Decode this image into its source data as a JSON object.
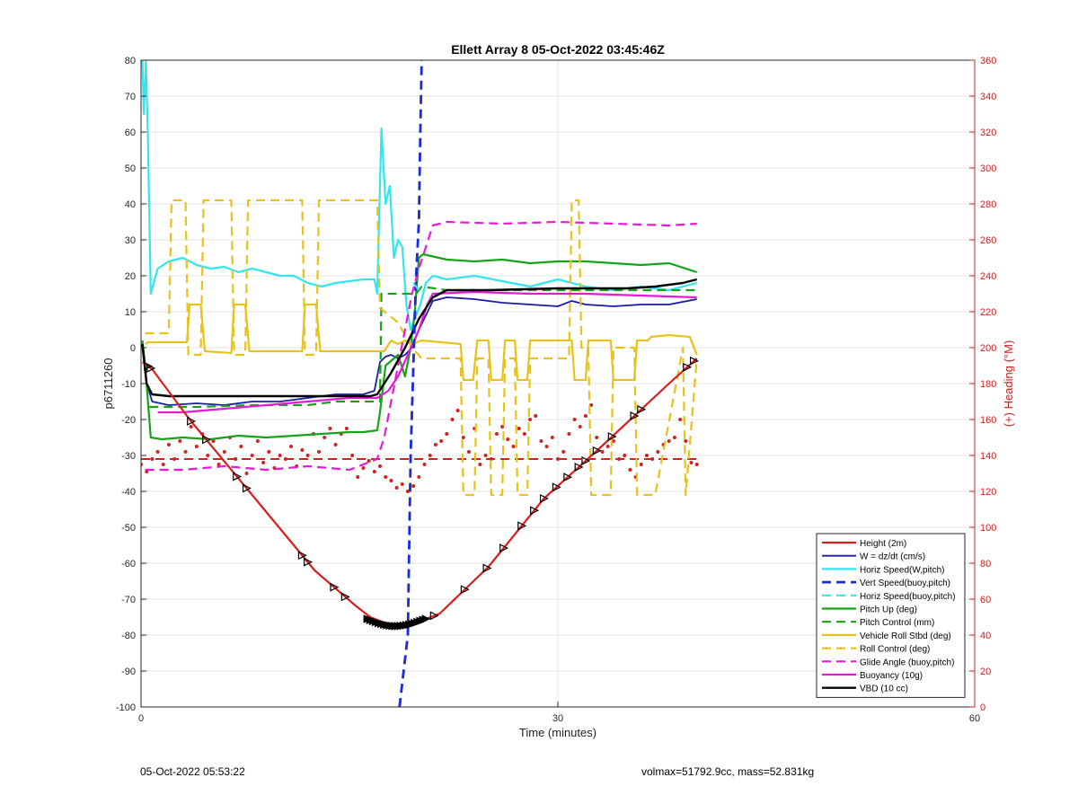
{
  "footer": {
    "left_text": "05-Oct-2022 05:53:22",
    "right_text": "volmax=51792.9cc, mass=52.831kg"
  },
  "chart_data": {
    "type": "line",
    "title": "Ellett Array 8 05-Oct-2022 03:45:46Z",
    "xlabel": "Time (minutes)",
    "ylabel_left": "p6711260",
    "ylabel_right": "(+) Heading (°M)",
    "xlim": [
      0,
      60
    ],
    "ylim_left": [
      -100,
      80
    ],
    "ylim_right": [
      0,
      360
    ],
    "x_ticks": [
      0,
      30,
      60
    ],
    "y_ticks_left": [
      -100,
      -90,
      -80,
      -70,
      -60,
      -50,
      -40,
      -30,
      -20,
      -10,
      0,
      10,
      20,
      30,
      40,
      50,
      60,
      70,
      80
    ],
    "y_ticks_right": [
      0,
      20,
      40,
      60,
      80,
      100,
      120,
      140,
      160,
      180,
      200,
      220,
      240,
      260,
      280,
      300,
      320,
      340,
      360
    ],
    "grid": true,
    "legend_position": "bottom-right",
    "colors": {
      "red": "#d62020",
      "blue": "#1a1aaa",
      "cyan": "#33e6ee",
      "green": "#17a317",
      "yellow": "#e6c21a",
      "magenta": "#e61ad6",
      "black": "#000000",
      "right_axis": "#cc2222"
    },
    "series": [
      {
        "name": "Height (2m)",
        "color": "#d62020",
        "style": "solid",
        "width": 2.2,
        "x": [
          0.1,
          0.8,
          3.5,
          8.0,
          12.5,
          15.5,
          16.5,
          17.5,
          18.5,
          19.5,
          21.5,
          25,
          29,
          33,
          38,
          40
        ],
        "y": [
          -4,
          -6,
          -20,
          -41,
          -62,
          -72,
          -75,
          -76.5,
          -77.3,
          -77,
          -74,
          -61,
          -42,
          -28,
          -10,
          -3
        ],
        "markers_x": [
          0.5,
          0.7,
          3.6,
          4.7,
          6.9,
          7.6,
          11.6,
          12.0,
          13.9,
          14.7,
          21.1,
          23.3,
          24.9,
          26.1,
          27.4,
          28.3,
          29.0,
          29.9,
          30.7,
          31.5,
          32.0,
          32.8,
          33.9,
          35.5,
          36.0,
          39.3,
          39.8
        ]
      },
      {
        "name": "W = dz/dt (cm/s)",
        "color": "#1a1aaa",
        "style": "solid",
        "width": 1.8,
        "x": [
          0.1,
          0.4,
          0.8,
          2,
          4,
          6,
          8,
          10,
          12,
          14,
          16,
          16.8,
          17.2,
          17.6,
          18,
          18.5,
          19,
          19.5,
          20,
          20.5,
          21,
          22,
          24,
          26,
          28,
          30,
          31,
          32,
          34,
          36,
          38,
          40
        ],
        "y": [
          0,
          -10,
          -15,
          -16,
          -15.5,
          -16,
          -15,
          -15,
          -14,
          -13,
          -13,
          -12,
          -4,
          -2.5,
          -2,
          -3,
          -2,
          0,
          5,
          9,
          13,
          14,
          13.5,
          12.5,
          12,
          11.5,
          13,
          12,
          11.5,
          12,
          12,
          13.5
        ]
      },
      {
        "name": "Horiz Speed(W,pitch)",
        "color": "#33e6ee",
        "style": "solid",
        "width": 2.2,
        "x": [
          0.1,
          0.2,
          0.35,
          0.5,
          0.7,
          1.2,
          2,
          3,
          4,
          5,
          6,
          7,
          8,
          9,
          10,
          11,
          12,
          13,
          14,
          15,
          16,
          16.8,
          17,
          17.3,
          17.6,
          17.9,
          18.2,
          18.5,
          18.8,
          19.1,
          19.4,
          19.7,
          20.1,
          20.5,
          21,
          22,
          24,
          26,
          28,
          30,
          32,
          34,
          36,
          38,
          40
        ],
        "y": [
          80,
          65,
          80,
          58,
          15,
          22,
          24,
          25,
          23,
          22,
          22.5,
          21,
          22,
          21,
          20,
          20,
          18,
          17,
          18,
          18.5,
          19,
          19,
          15,
          61,
          40,
          45,
          25,
          30,
          28,
          12,
          5,
          8,
          12,
          18,
          20,
          19,
          20,
          18.5,
          17,
          19,
          17,
          16,
          17,
          16,
          18
        ]
      },
      {
        "name": "Vert Speed(buoy,pitch)",
        "color": "#1a2ad8",
        "style": "dashed",
        "width": 2.8,
        "x": [
          18.6,
          19.2,
          19.3,
          19.4,
          19.8,
          20.0,
          20.1,
          20.2
        ],
        "y": [
          -100,
          -80,
          -55,
          -30,
          20,
          35,
          60,
          80
        ]
      },
      {
        "name": "Horiz Speed(buoy,pitch)",
        "color": "#33e6ee",
        "style": "dashed",
        "width": 2.2,
        "x": [
          19.6,
          20.0
        ],
        "y": [
          18,
          16
        ]
      },
      {
        "name": "Pitch Up (deg)",
        "color": "#17a317",
        "style": "solid",
        "width": 2.2,
        "x": [
          0.1,
          0.3,
          0.7,
          1.5,
          3,
          5,
          7,
          9,
          11,
          13,
          15,
          16,
          17,
          17.2,
          17.6,
          18.5,
          19.0,
          19.4,
          19.7,
          20,
          20.3,
          22,
          24,
          26,
          28,
          30,
          32,
          34,
          36,
          38,
          40
        ],
        "y": [
          2,
          -5,
          -25,
          -25.5,
          -25,
          -25.5,
          -24.5,
          -25,
          -24.5,
          -24,
          -23.5,
          -23.5,
          -23,
          -18,
          -5,
          -2,
          -8,
          0,
          10,
          25,
          26,
          24.5,
          24,
          24.5,
          23.5,
          24,
          24,
          23.5,
          23,
          23.5,
          21
        ]
      },
      {
        "name": "Pitch Control (mm)",
        "color": "#17a317",
        "style": "dashed",
        "width": 2.2,
        "x": [
          0.6,
          1.0,
          4,
          8,
          12,
          14,
          17.2,
          17.3,
          19.8,
          20.2,
          22,
          26,
          30,
          34,
          38,
          40
        ],
        "y": [
          -16.5,
          -16.5,
          -16.5,
          -16,
          -16,
          -15,
          -15,
          15,
          15,
          17,
          16,
          16,
          16,
          16,
          16,
          16
        ]
      },
      {
        "name": "Vehicle Roll Stbd (deg)",
        "color": "#e6c21a",
        "style": "solid",
        "width": 2.2,
        "x": [
          0.3,
          0.5,
          3.3,
          3.5,
          4.3,
          4.6,
          6.5,
          6.7,
          7.5,
          7.8,
          11.6,
          11.8,
          12.6,
          12.9,
          17.5,
          18.0,
          18.5,
          19.0,
          19.5,
          20.2,
          23.0,
          23.2,
          23.9,
          24.2,
          25.0,
          25.2,
          26.0,
          26.2,
          26.9,
          27.1,
          27.8,
          28.0,
          31.0,
          31.2,
          32.0,
          32.2,
          33.8,
          34.0,
          35.5,
          35.7,
          36.5,
          36.7,
          38.0,
          39.5,
          40
        ],
        "y": [
          1,
          1.5,
          1.5,
          12,
          12,
          -1,
          -1.5,
          12,
          12,
          -1,
          -1,
          12,
          12,
          -1,
          -1,
          2,
          1,
          2,
          1,
          2,
          1,
          -9,
          -9,
          2,
          2,
          -9,
          -9,
          2,
          2,
          -9,
          -9,
          2,
          2,
          -9,
          -9,
          2,
          2,
          -9,
          -9,
          2,
          2,
          3,
          3.5,
          3,
          -2
        ]
      },
      {
        "name": "Roll Control (deg)",
        "color": "#e6c21a",
        "style": "dashed",
        "width": 2.2,
        "x": [
          0.3,
          2.0,
          2.2,
          3.2,
          3.4,
          4.3,
          4.5,
          6.5,
          6.7,
          7.5,
          7.7,
          11.6,
          11.8,
          12.6,
          12.8,
          17.0,
          17.2,
          18.5,
          19.5,
          20.2,
          22,
          23.0,
          23.2,
          24.0,
          24.2,
          25.0,
          25.2,
          26.0,
          26.2,
          26.9,
          27.1,
          27.8,
          28.0,
          30.8,
          31.0,
          31.5,
          31.7,
          32.2,
          32.4,
          33.8,
          34.0,
          35.5,
          35.7,
          37.0,
          39.0,
          39.2,
          40
        ],
        "y": [
          4,
          4,
          41,
          41,
          -2,
          -2,
          41,
          41,
          -2,
          -2,
          41,
          41,
          -2,
          -2,
          41,
          41,
          11,
          7,
          0,
          -3,
          -3,
          -3,
          -41,
          -41,
          -3,
          -3,
          -41,
          -41,
          -3,
          -3,
          -41,
          -41,
          -3,
          -3,
          41,
          41,
          0,
          0,
          -41,
          -41,
          0,
          0,
          -41,
          -41,
          0,
          -41,
          -3
        ]
      },
      {
        "name": "Glide Angle (buoy,pitch)",
        "color": "#e61ad6",
        "style": "dashed",
        "width": 2.2,
        "x": [
          0.3,
          3,
          6,
          9,
          12,
          15,
          17.0,
          17.5,
          18,
          18.5,
          19,
          19.5,
          20,
          20.5,
          21,
          22,
          26,
          30,
          34,
          38,
          40
        ],
        "y": [
          -34,
          -34,
          -33,
          -34,
          -33,
          -34,
          -31,
          -25,
          -15,
          -5,
          5,
          15,
          22,
          28,
          34,
          35,
          34.5,
          35,
          34.5,
          34,
          34.5
        ]
      },
      {
        "name": "Buoyancy (10g)",
        "color": "#e61ad6",
        "style": "solid",
        "width": 2.2,
        "x": [
          1.2,
          3,
          6,
          9,
          12,
          15,
          17.0,
          17.8,
          18.5,
          19.2,
          20,
          20.6,
          21,
          24,
          28,
          32,
          36,
          40
        ],
        "y": [
          -18,
          -18,
          -17,
          -16,
          -15,
          -14,
          -14,
          -12,
          -8,
          -2,
          5,
          12,
          15,
          15.5,
          15,
          15,
          14.5,
          14
        ]
      },
      {
        "name": "VBD (10 cc)",
        "color": "#000000",
        "style": "solid",
        "width": 2.4,
        "x": [
          0.1,
          0.4,
          0.8,
          2,
          5,
          9,
          13,
          16.5,
          17,
          18,
          19,
          20,
          21,
          22,
          25,
          30,
          35,
          37,
          38,
          39,
          40
        ],
        "y": [
          1,
          -10,
          -13,
          -13.5,
          -13.5,
          -13.5,
          -13.5,
          -13.5,
          -13,
          -7,
          0,
          8,
          14,
          16,
          16,
          16.5,
          16.5,
          17,
          17.5,
          18,
          19
        ]
      }
    ],
    "heading_series": {
      "axis": "right",
      "color": "#d62020",
      "style": "dotted",
      "x": [
        0,
        0.4,
        0.8,
        1.2,
        1.6,
        2.0,
        2.4,
        2.8,
        3.2,
        3.6,
        4.0,
        4.4,
        4.8,
        5.2,
        5.6,
        6.0,
        6.4,
        6.8,
        7.2,
        7.6,
        8.0,
        8.4,
        8.8,
        9.2,
        9.6,
        10.0,
        10.4,
        10.8,
        11.2,
        11.6,
        12.0,
        12.4,
        12.8,
        13.2,
        13.6,
        14.0,
        14.4,
        14.8,
        15.2,
        15.6,
        16.0,
        16.4,
        16.8,
        17.2,
        17.6,
        18.0,
        18.4,
        18.8,
        19.2,
        19.6,
        20.0,
        20.4,
        20.8,
        21.2,
        21.6,
        22.0,
        22.4,
        22.8,
        23.2,
        23.6,
        24.0,
        24.4,
        24.8,
        25.2,
        25.6,
        26.0,
        26.4,
        26.8,
        27.2,
        27.6,
        28.0,
        28.4,
        28.8,
        29.2,
        29.6,
        30.0,
        30.4,
        30.8,
        31.2,
        31.6,
        32.0,
        32.4,
        32.8,
        33.2,
        33.6,
        34.0,
        34.4,
        34.8,
        35.2,
        35.6,
        36.0,
        36.4,
        36.8,
        37.2,
        37.6,
        38.0,
        38.4,
        38.8,
        39.2,
        39.6,
        40.0
      ],
      "y": [
        135,
        131,
        138,
        142,
        135,
        146,
        138,
        148,
        142,
        156,
        145,
        152,
        140,
        148,
        135,
        142,
        150,
        138,
        145,
        130,
        140,
        148,
        136,
        142,
        133,
        140,
        138,
        145,
        134,
        143,
        140,
        152,
        142,
        150,
        155,
        146,
        152,
        155,
        140,
        128,
        133,
        137,
        131,
        134,
        128,
        126,
        122,
        124,
        120,
        123,
        128,
        135,
        140,
        146,
        148,
        152,
        160,
        165,
        150,
        142,
        155,
        135,
        140,
        138,
        152,
        156,
        149,
        145,
        155,
        152,
        160,
        162,
        148,
        145,
        150,
        138,
        142,
        152,
        160,
        156,
        162,
        168,
        150,
        142,
        145,
        148,
        138,
        140,
        132,
        128,
        135,
        140,
        138,
        142,
        146,
        148,
        150,
        160,
        148,
        136,
        135
      ]
    },
    "heading_reference": {
      "axis": "right",
      "color": "#d62020",
      "style": "dashed",
      "value": 138
    }
  }
}
